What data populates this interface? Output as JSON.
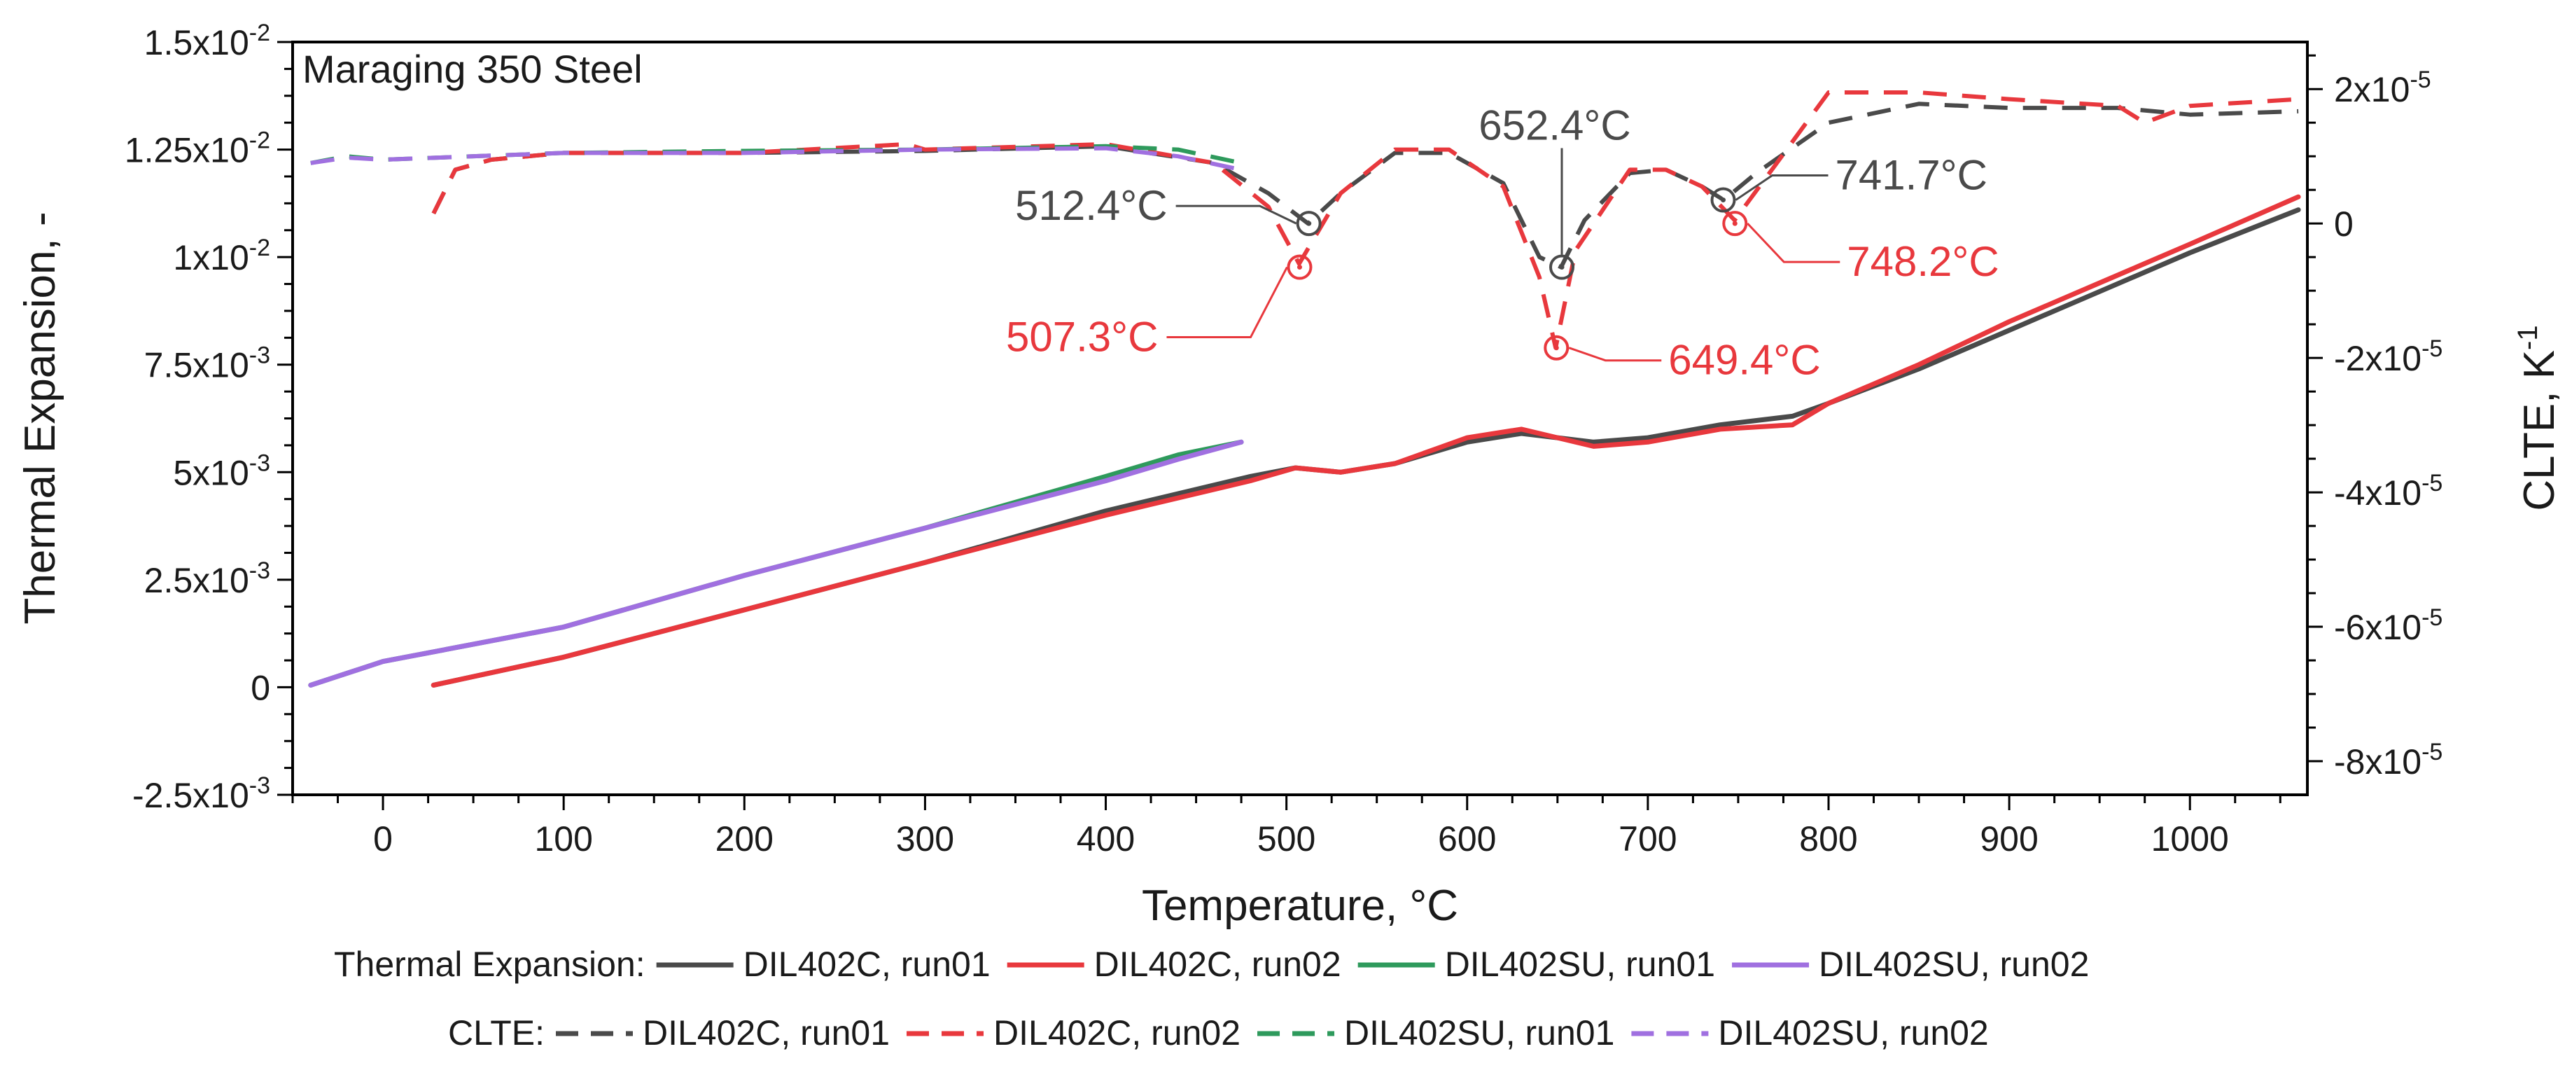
{
  "chart_data": {
    "type": "line",
    "title": "Maraging 350 Steel",
    "xlabel": "Temperature, °C",
    "ylabel_left": "Thermal Expansion, -",
    "ylabel_right_base": "CLTE, K",
    "ylabel_right_exp": "-1",
    "xlim": [
      -50,
      1065
    ],
    "ylim_left": [
      -0.0025,
      0.015
    ],
    "ylim_right": [
      -8.5e-05,
      2.7e-05
    ],
    "x_ticks": [
      0,
      100,
      200,
      300,
      400,
      500,
      600,
      700,
      800,
      900,
      1000
    ],
    "x_tick_labels": [
      "0",
      "100",
      "200",
      "300",
      "400",
      "500",
      "600",
      "700",
      "800",
      "900",
      "1000"
    ],
    "y_left_ticks": [
      {
        "value": 0.015,
        "mant": "1.5x10",
        "exp": "-2"
      },
      {
        "value": 0.0125,
        "mant": "1.25x10",
        "exp": "-2"
      },
      {
        "value": 0.01,
        "mant": "1x10",
        "exp": "-2"
      },
      {
        "value": 0.0075,
        "mant": "7.5x10",
        "exp": "-3"
      },
      {
        "value": 0.005,
        "mant": "5x10",
        "exp": "-3"
      },
      {
        "value": 0.0025,
        "mant": "2.5x10",
        "exp": "-3"
      },
      {
        "value": 0,
        "mant": "0",
        "exp": ""
      },
      {
        "value": -0.0025,
        "mant": "-2.5x10",
        "exp": "-3"
      }
    ],
    "y_right_ticks": [
      {
        "value": 2e-05,
        "mant": "2x10",
        "exp": "-5"
      },
      {
        "value": 0,
        "mant": "0",
        "exp": ""
      },
      {
        "value": -2e-05,
        "mant": "-2x10",
        "exp": "-5"
      },
      {
        "value": -4e-05,
        "mant": "-4x10",
        "exp": "-5"
      },
      {
        "value": -6e-05,
        "mant": "-6x10",
        "exp": "-5"
      },
      {
        "value": -8e-05,
        "mant": "-8x10",
        "exp": "-5"
      }
    ],
    "series": [
      {
        "name": "DIL402C, run01",
        "kind": "expansion",
        "axis": "left",
        "color": "#4a4a4a",
        "dashed": false,
        "x": [
          28,
          100,
          200,
          300,
          400,
          480,
          505,
          530,
          560,
          600,
          630,
          650,
          670,
          700,
          740,
          780,
          800,
          850,
          900,
          950,
          1000,
          1060
        ],
        "y": [
          5e-05,
          0.0007,
          0.0018,
          0.0029,
          0.0041,
          0.0049,
          0.0051,
          0.005,
          0.0052,
          0.0057,
          0.0059,
          0.0058,
          0.0057,
          0.0058,
          0.0061,
          0.0063,
          0.0066,
          0.0074,
          0.0083,
          0.0092,
          0.0101,
          0.0111
        ]
      },
      {
        "name": "DIL402C, run02",
        "kind": "expansion",
        "axis": "left",
        "color": "#e8383d",
        "dashed": false,
        "x": [
          28,
          100,
          200,
          300,
          400,
          480,
          505,
          530,
          560,
          600,
          630,
          650,
          670,
          700,
          740,
          780,
          800,
          850,
          900,
          950,
          1000,
          1060
        ],
        "y": [
          5e-05,
          0.0007,
          0.0018,
          0.0029,
          0.004,
          0.0048,
          0.0051,
          0.005,
          0.0052,
          0.0058,
          0.006,
          0.0058,
          0.0056,
          0.0057,
          0.006,
          0.0061,
          0.0066,
          0.0075,
          0.0085,
          0.0094,
          0.0103,
          0.0114
        ]
      },
      {
        "name": "DIL402SU, run01",
        "kind": "expansion",
        "axis": "left",
        "color": "#2e9a5c",
        "dashed": false,
        "x": [
          -40,
          0,
          100,
          200,
          300,
          400,
          440,
          475
        ],
        "y": [
          5e-05,
          0.0006,
          0.0014,
          0.0026,
          0.0037,
          0.0049,
          0.0054,
          0.0057
        ]
      },
      {
        "name": "DIL402SU, run02",
        "kind": "expansion",
        "axis": "left",
        "color": "#a070e0",
        "dashed": false,
        "x": [
          -40,
          0,
          100,
          200,
          300,
          400,
          440,
          475
        ],
        "y": [
          5e-05,
          0.0006,
          0.0014,
          0.0026,
          0.0037,
          0.0048,
          0.0053,
          0.0057
        ]
      },
      {
        "name": "DIL402C, run01",
        "kind": "clte",
        "axis": "right",
        "color": "#4a4a4a",
        "dashed": true,
        "x": [
          28,
          40,
          60,
          100,
          200,
          300,
          400,
          460,
          490,
          512,
          530,
          560,
          590,
          620,
          640,
          652,
          665,
          690,
          710,
          730,
          742,
          760,
          800,
          850,
          900,
          960,
          1000,
          1060
        ],
        "y": [
          1.5e-06,
          8e-06,
          9.5e-06,
          1.05e-05,
          1.05e-05,
          1.08e-05,
          1.15e-05,
          9e-06,
          4.5e-06,
          0.0,
          4.5e-06,
          1.05e-05,
          1.05e-05,
          6e-06,
          -5e-06,
          -6.5e-06,
          5e-07,
          7.5e-06,
          8e-06,
          5.5e-06,
          3.5e-06,
          7.5e-06,
          1.5e-05,
          1.78e-05,
          1.72e-05,
          1.72e-05,
          1.62e-05,
          1.67e-05
        ]
      },
      {
        "name": "DIL402C, run02",
        "kind": "clte",
        "axis": "right",
        "color": "#e8383d",
        "dashed": true,
        "x": [
          28,
          40,
          60,
          100,
          200,
          290,
          300,
          400,
          460,
          490,
          507,
          530,
          560,
          590,
          620,
          640,
          649,
          660,
          690,
          710,
          730,
          748,
          770,
          800,
          850,
          900,
          960,
          975,
          1000,
          1060
        ],
        "y": [
          1.5e-06,
          8e-06,
          9.5e-06,
          1.05e-05,
          1.05e-05,
          1.18e-05,
          1.1e-05,
          1.18e-05,
          9e-06,
          2.5e-06,
          -6e-06,
          4.5e-06,
          1.1e-05,
          1.1e-05,
          5.5e-06,
          -8e-06,
          -1.85e-05,
          -4e-06,
          8e-06,
          8e-06,
          5.5e-06,
          5e-07,
          8.5e-06,
          1.95e-05,
          1.95e-05,
          1.85e-05,
          1.75e-05,
          1.5e-05,
          1.75e-05,
          1.85e-05
        ]
      },
      {
        "name": "DIL402SU, run01",
        "kind": "clte",
        "axis": "right",
        "color": "#2e9a5c",
        "dashed": true,
        "x": [
          -40,
          -20,
          0,
          100,
          200,
          300,
          400,
          440,
          475
        ],
        "y": [
          9e-06,
          1e-05,
          9.5e-06,
          1.05e-05,
          1.08e-05,
          1.1e-05,
          1.15e-05,
          1.1e-05,
          9e-06
        ]
      },
      {
        "name": "DIL402SU, run02",
        "kind": "clte",
        "axis": "right",
        "color": "#a070e0",
        "dashed": true,
        "x": [
          -40,
          -20,
          0,
          100,
          200,
          300,
          400,
          440,
          475
        ],
        "y": [
          9e-06,
          9.8e-06,
          9.5e-06,
          1.05e-05,
          1.05e-05,
          1.1e-05,
          1.12e-05,
          1e-05,
          8e-06
        ]
      }
    ],
    "annotations": [
      {
        "text": "512.4°C",
        "series": "DIL402C, run01",
        "x": 512.4,
        "y": 0.0,
        "color": "#4a4a4a",
        "side": "left",
        "dy": -0.25
      },
      {
        "text": "507.3°C",
        "series": "DIL402C, run02",
        "x": 507.3,
        "y": -6.5e-06,
        "color": "#e8383d",
        "side": "left",
        "dy": 1.0
      },
      {
        "text": "652.4°C",
        "series": "DIL402C, run01",
        "x": 652.4,
        "y": -6.5e-06,
        "color": "#4a4a4a",
        "side": "top",
        "dy": 0
      },
      {
        "text": "649.4°C",
        "series": "DIL402C, run02",
        "x": 649.4,
        "y": -1.85e-05,
        "color": "#e8383d",
        "side": "right",
        "dy": 0.18
      },
      {
        "text": "741.7°C",
        "series": "DIL402C, run01",
        "x": 741.7,
        "y": 3.5e-06,
        "color": "#4a4a4a",
        "side": "right",
        "dy": -0.35
      },
      {
        "text": "748.2°C",
        "series": "DIL402C, run02",
        "x": 748.2,
        "y": 0.0,
        "color": "#e8383d",
        "side": "right",
        "dy": 0.55
      }
    ],
    "legend": {
      "position": "bottom",
      "rows": [
        {
          "label": "Thermal Expansion:",
          "entries": [
            {
              "name": "DIL402C, run01",
              "color": "#4a4a4a",
              "dashed": false
            },
            {
              "name": "DIL402C, run02",
              "color": "#e8383d",
              "dashed": false
            },
            {
              "name": "DIL402SU, run01",
              "color": "#2e9a5c",
              "dashed": false
            },
            {
              "name": "DIL402SU, run02",
              "color": "#a070e0",
              "dashed": false
            }
          ]
        },
        {
          "label": "CLTE:",
          "entries": [
            {
              "name": "DIL402C, run01",
              "color": "#4a4a4a",
              "dashed": true
            },
            {
              "name": "DIL402C, run02",
              "color": "#e8383d",
              "dashed": true
            },
            {
              "name": "DIL402SU, run01",
              "color": "#2e9a5c",
              "dashed": true
            },
            {
              "name": "DIL402SU, run02",
              "color": "#a070e0",
              "dashed": true
            }
          ]
        }
      ]
    }
  }
}
